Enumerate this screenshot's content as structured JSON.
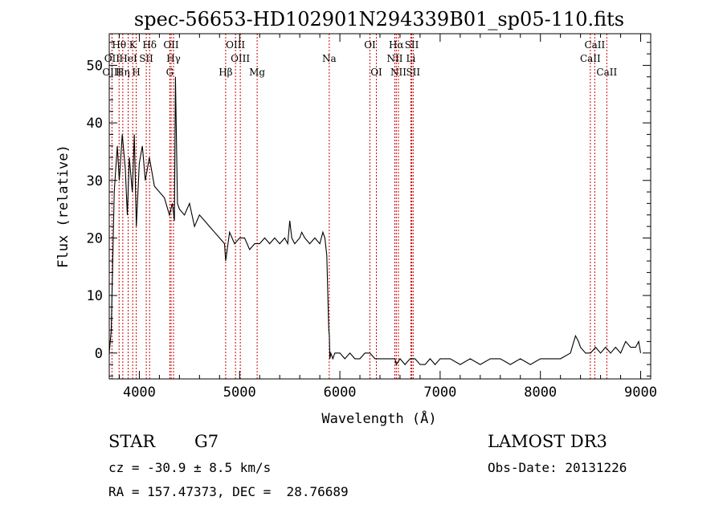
{
  "chart_data": {
    "type": "line",
    "title": "spec-56653-HD102901N294339B01_sp05-110.fits",
    "xlabel": "Wavelength (Å)",
    "ylabel": "Flux (relative)",
    "xlim": [
      3700,
      9100
    ],
    "ylim": [
      -4.5,
      55.5
    ],
    "x_ticks": [
      "4000",
      "5000",
      "6000",
      "7000",
      "8000",
      "9000"
    ],
    "x_tick_values": [
      4000,
      5000,
      6000,
      7000,
      8000,
      9000
    ],
    "y_ticks": [
      "0",
      "10",
      "20",
      "30",
      "40",
      "50"
    ],
    "y_tick_values": [
      0,
      10,
      20,
      30,
      40,
      50
    ],
    "grid": false,
    "series": [
      {
        "color": "#000000",
        "x": [
          3700,
          3720,
          3750,
          3780,
          3800,
          3830,
          3860,
          3880,
          3900,
          3930,
          3950,
          3970,
          4000,
          4030,
          4060,
          4100,
          4150,
          4200,
          4250,
          4300,
          4330,
          4350,
          4360,
          4380,
          4400,
          4450,
          4500,
          4550,
          4600,
          4650,
          4700,
          4750,
          4800,
          4850,
          4861,
          4900,
          4950,
          5000,
          5050,
          5100,
          5150,
          5200,
          5250,
          5300,
          5350,
          5400,
          5450,
          5480,
          5500,
          5520,
          5550,
          5600,
          5620,
          5650,
          5700,
          5750,
          5800,
          5830,
          5850,
          5870,
          5880,
          5890,
          5895,
          5900,
          5910,
          5930,
          5950,
          6000,
          6050,
          6100,
          6150,
          6200,
          6250,
          6300,
          6350,
          6400,
          6450,
          6500,
          6550,
          6563,
          6600,
          6650,
          6700,
          6750,
          6800,
          6850,
          6900,
          6950,
          7000,
          7100,
          7200,
          7300,
          7400,
          7500,
          7600,
          7700,
          7800,
          7900,
          8000,
          8100,
          8200,
          8300,
          8350,
          8380,
          8400,
          8450,
          8500,
          8550,
          8600,
          8650,
          8700,
          8750,
          8800,
          8850,
          8900,
          8950,
          8980,
          9000
        ],
        "y": [
          0,
          4,
          28,
          36,
          30,
          38,
          32,
          24,
          34,
          28,
          38,
          22,
          33,
          36,
          30,
          34,
          29,
          28,
          27,
          24,
          26,
          23,
          48,
          26,
          25,
          24,
          26,
          22,
          24,
          23,
          22,
          21,
          20,
          19,
          16,
          21,
          19,
          20,
          20,
          18,
          19,
          19,
          20,
          19,
          20,
          19,
          20,
          19,
          23,
          20,
          19,
          20,
          21,
          20,
          19,
          20,
          19,
          21,
          20,
          17,
          10,
          4,
          3,
          -1,
          0,
          -1,
          0,
          0,
          -1,
          0,
          -1,
          -1,
          0,
          0,
          -1,
          -1,
          -1,
          -1,
          -1,
          -2,
          -1,
          -2,
          -1,
          -1,
          -2,
          -2,
          -1,
          -2,
          -1,
          -1,
          -2,
          -1,
          -2,
          -1,
          -1,
          -2,
          -1,
          -2,
          -1,
          -1,
          -1,
          0,
          3,
          2,
          1,
          0,
          0,
          1,
          0,
          1,
          0,
          1,
          0,
          2,
          1,
          1,
          2,
          0
        ]
      }
    ],
    "spectral_lines": [
      {
        "label": "Hθ",
        "wl": 3798,
        "row": 0
      },
      {
        "label": "OII",
        "wl": 3727,
        "row": 1
      },
      {
        "label": "OIII",
        "wl": 3727,
        "row": 2
      },
      {
        "label": "K",
        "wl": 3934,
        "row": 0
      },
      {
        "label": "HeI",
        "wl": 3889,
        "row": 1
      },
      {
        "label": "Hη",
        "wl": 3835,
        "row": 2
      },
      {
        "label": "Hδ",
        "wl": 4102,
        "row": 0
      },
      {
        "label": "SII",
        "wl": 4069,
        "row": 1
      },
      {
        "label": "H",
        "wl": 3969,
        "row": 2
      },
      {
        "label": "OII",
        "wl": 4317,
        "row": 0
      },
      {
        "label": "Hγ",
        "wl": 4341,
        "row": 1
      },
      {
        "label": "G",
        "wl": 4304,
        "row": 2
      },
      {
        "label": "OIII",
        "wl": 4959,
        "row": 0
      },
      {
        "label": "OIII",
        "wl": 5007,
        "row": 1
      },
      {
        "label": "Hβ",
        "wl": 4861,
        "row": 2
      },
      {
        "label": "Mg",
        "wl": 5175,
        "row": 2
      },
      {
        "label": "Na",
        "wl": 5894,
        "row": 1
      },
      {
        "label": "OI",
        "wl": 6300,
        "row": 0
      },
      {
        "label": "OI",
        "wl": 6364,
        "row": 2
      },
      {
        "label": "Hα",
        "wl": 6563,
        "row": 0
      },
      {
        "label": "SII",
        "wl": 6717,
        "row": 0
      },
      {
        "label": "NII",
        "wl": 6548,
        "row": 1
      },
      {
        "label": "Li",
        "wl": 6708,
        "row": 1
      },
      {
        "label": "NII",
        "wl": 6584,
        "row": 2
      },
      {
        "label": "SII",
        "wl": 6731,
        "row": 2
      },
      {
        "label": "CaII",
        "wl": 8542,
        "row": 0
      },
      {
        "label": "CaII",
        "wl": 8498,
        "row": 1
      },
      {
        "label": "CaII",
        "wl": 8662,
        "row": 2
      }
    ]
  },
  "info": {
    "object_class": "STAR",
    "subclass": "G7",
    "survey": "LAMOST DR3",
    "cz": "cz = -30.9 ± 8.5 km/s",
    "obs_date": "Obs-Date: 20131226",
    "coords": "RA = 157.47373, DEC =  28.76689"
  },
  "colors": {
    "spectrum": "#000000",
    "line_marker": "#cc0000"
  }
}
